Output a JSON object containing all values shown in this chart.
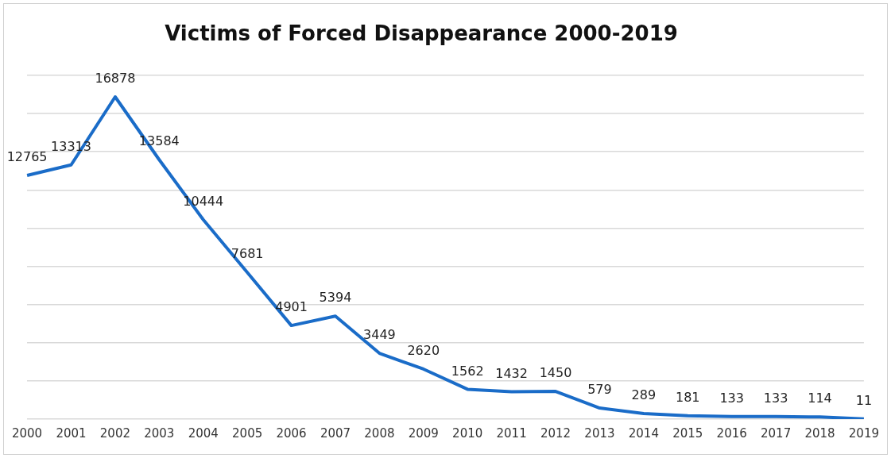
{
  "chart_data": {
    "type": "line",
    "title": "Victims of Forced Disappearance 2000-2019",
    "categories": [
      "2000",
      "2001",
      "2002",
      "2003",
      "2004",
      "2005",
      "2006",
      "2007",
      "2008",
      "2009",
      "2010",
      "2011",
      "2012",
      "2013",
      "2014",
      "2015",
      "2016",
      "2017",
      "2018",
      "2019"
    ],
    "values": [
      12765,
      13313,
      16878,
      13584,
      10444,
      7681,
      4901,
      5394,
      3449,
      2620,
      1562,
      1432,
      1450,
      579,
      289,
      181,
      133,
      133,
      114,
      11
    ],
    "color": "#1a6cc8",
    "ylim": [
      0,
      18000
    ],
    "yticks": [
      {
        "value": 0,
        "label": null
      },
      {
        "value": 2000,
        "label": null
      },
      {
        "value": 4000,
        "label": null
      },
      {
        "value": 6000,
        "label": null
      },
      {
        "value": 8000,
        "label": null
      },
      {
        "value": 10000,
        "label": null
      },
      {
        "value": 12000,
        "label": null
      },
      {
        "value": 14000,
        "label": null
      },
      {
        "value": 16000,
        "label": null
      },
      {
        "value": 18000,
        "label": null
      }
    ],
    "grid": "y",
    "tick_labels": "x",
    "data_labels": true,
    "marker": "none",
    "line_style": "solid"
  }
}
